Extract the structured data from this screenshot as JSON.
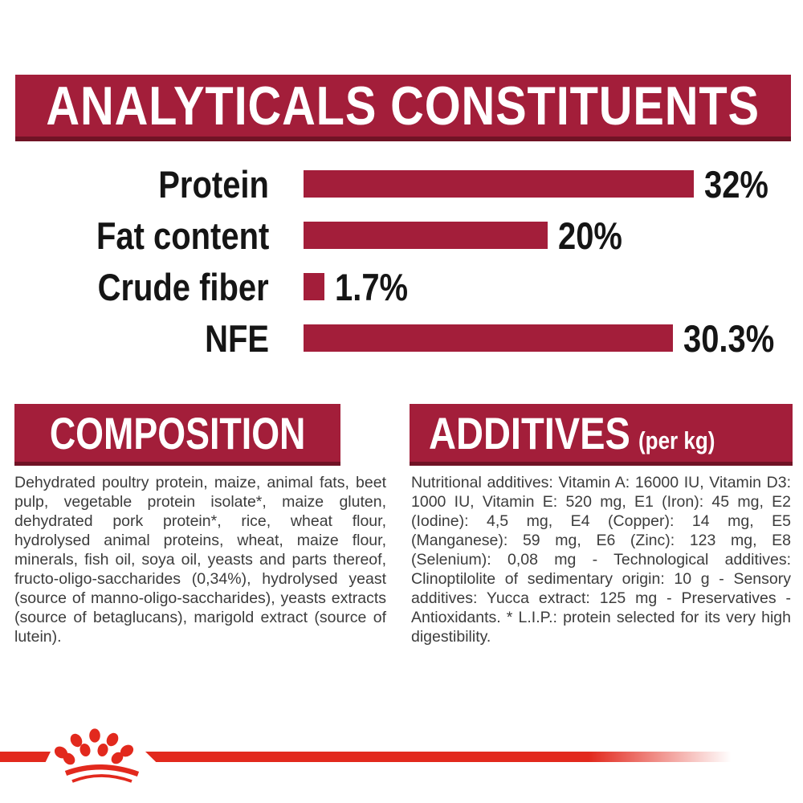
{
  "colors": {
    "banner_maroon": "#A31E3A",
    "banner_edge_dark": "#701325",
    "bar_maroon": "#A31E3A",
    "logo_red": "#E2291D",
    "body_text_gray": "#3C3C3C",
    "chart_text_black": "#151515"
  },
  "header": {
    "title": "ANALYTICALS CONSTITUENTS"
  },
  "chart_data": {
    "type": "bar",
    "orientation": "horizontal",
    "categories": [
      "Protein",
      "Fat content",
      "Crude fiber",
      "NFE"
    ],
    "values": [
      32,
      20,
      1.7,
      30.3
    ],
    "value_labels": [
      "32%",
      "20%",
      "1.7%",
      "30.3%"
    ],
    "unit": "%",
    "xlim": [
      0,
      32
    ],
    "bar_color": "#A31E3A",
    "grid": false,
    "legend": false
  },
  "composition": {
    "title": "COMPOSITION",
    "body": "Dehydrated poultry protein, maize, animal fats, beet pulp, vegetable protein isolate*, maize gluten, dehydrated pork protein*, rice, wheat flour, hydrolysed animal proteins, wheat, maize flour, minerals, fish oil, soya oil, yeasts and parts thereof, fructo-oligo-saccharides (0,34%), hydrolysed yeast (source of manno-oligo-saccharides), yeasts extracts (source of betaglucans), marigold extract (source of lutein)."
  },
  "additives": {
    "title": "ADDITIVES",
    "title_suffix": "(per kg)",
    "body": "Nutritional additives: Vitamin A: 16000 IU, Vitamin D3: 1000 IU, Vitamin E: 520 mg, E1 (Iron): 45 mg, E2 (Iodine): 4,5 mg, E4 (Copper): 14 mg, E5 (Manganese): 59 mg, E6 (Zinc): 123 mg, E8 (Selenium): 0,08 mg - Technological additives: Clinoptilolite of sedimentary origin: 10 g - Sensory additives: Yucca extract: 125 mg - Preservatives - Antioxidants. * L.I.P.: protein selected for its very high digestibility."
  },
  "footer": {
    "logo_icon": "royal-canin-crown-icon"
  }
}
